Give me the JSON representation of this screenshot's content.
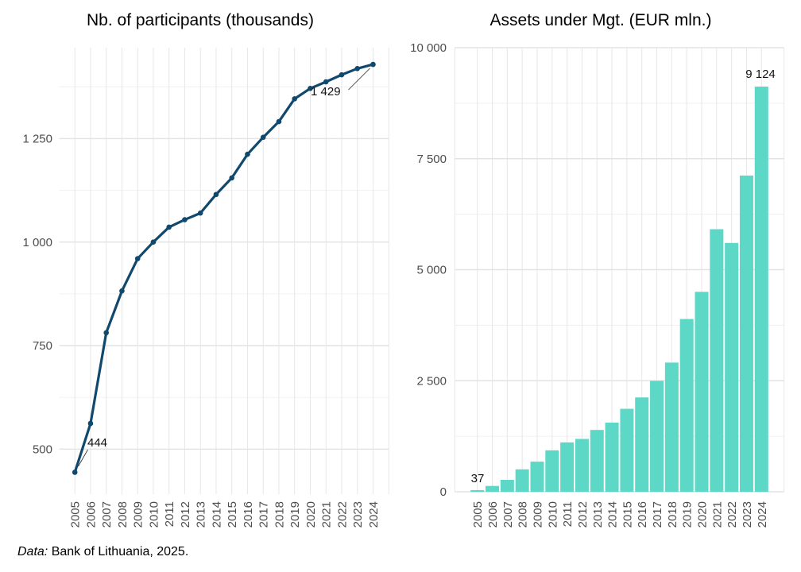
{
  "colors": {
    "background": "#ffffff",
    "line": "#10496d",
    "point": "#10496d",
    "bar": "#5dd8c6",
    "grid_major": "#e3e3e3",
    "grid_minor": "#f0f0f0",
    "axis_text": "#4d4d4d",
    "annotation_text": "#111111",
    "leader_line": "#2a2a2a"
  },
  "footer": {
    "prefix": "Data:",
    "text": " Bank of Lithuania, 2025."
  },
  "chart_data": [
    {
      "type": "line",
      "title": "Nb. of participants (thousands)",
      "xlabel": "",
      "ylabel": "",
      "categories": [
        "2005",
        "2006",
        "2007",
        "2008",
        "2009",
        "2010",
        "2011",
        "2012",
        "2013",
        "2014",
        "2015",
        "2016",
        "2017",
        "2018",
        "2019",
        "2020",
        "2021",
        "2022",
        "2023",
        "2024"
      ],
      "values": [
        444,
        562,
        781,
        882,
        960,
        1000,
        1036,
        1054,
        1070,
        1115,
        1155,
        1212,
        1253,
        1291,
        1346,
        1371,
        1387,
        1404,
        1419,
        1429
      ],
      "yticks": [
        500,
        750,
        1000,
        1250
      ],
      "ytick_labels": [
        "500",
        "750",
        "1 000",
        "1 250"
      ],
      "ylim": [
        391,
        1470
      ],
      "grid": true,
      "legend": false,
      "annotations": [
        {
          "target_index": 0,
          "text": "444"
        },
        {
          "target_index": 19,
          "text": "1 429"
        }
      ]
    },
    {
      "type": "bar",
      "title": "Assets under Mgt. (EUR mln.)",
      "xlabel": "",
      "ylabel": "",
      "categories": [
        "2005",
        "2006",
        "2007",
        "2008",
        "2009",
        "2010",
        "2011",
        "2012",
        "2013",
        "2014",
        "2015",
        "2016",
        "2017",
        "2018",
        "2019",
        "2020",
        "2021",
        "2022",
        "2023",
        "2024"
      ],
      "values": [
        37,
        131,
        268,
        505,
        678,
        933,
        1112,
        1190,
        1392,
        1558,
        1868,
        2124,
        2498,
        2909,
        3890,
        4502,
        5912,
        5603,
        7120,
        9124
      ],
      "yticks": [
        0,
        2500,
        5000,
        7500,
        10000
      ],
      "ytick_labels": [
        "0",
        "2 500",
        "5 000",
        "7 500",
        "10 000"
      ],
      "ylim": [
        0,
        10000
      ],
      "grid": true,
      "legend": false,
      "annotations": [
        {
          "target_index": 0,
          "text": "37"
        },
        {
          "target_index": 19,
          "text": "9 124"
        }
      ]
    }
  ]
}
